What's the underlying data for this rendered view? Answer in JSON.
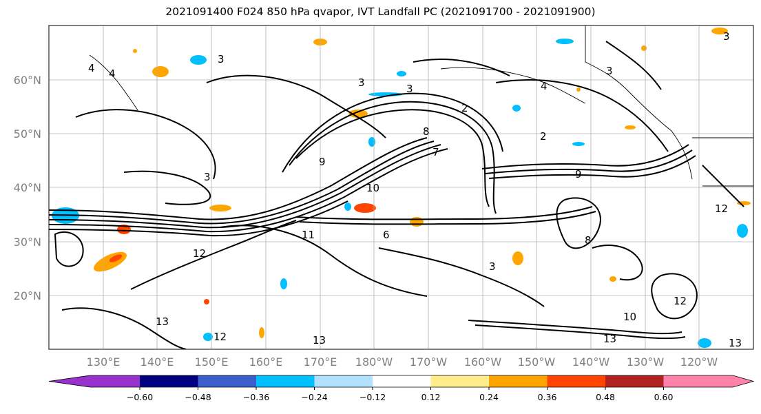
{
  "title": "2021091400 F024 850 hPa qvapor, IVT Landfall PC (2021091700 - 2021091900)",
  "map": {
    "lat_labels": [
      "60°N",
      "50°N",
      "40°N",
      "30°N",
      "20°N"
    ],
    "lon_labels": [
      "130°E",
      "140°E",
      "150°E",
      "160°E",
      "170°E",
      "180°W",
      "170°W",
      "160°W",
      "150°W",
      "140°W",
      "130°W",
      "120°W"
    ],
    "contour_labels": [
      "4",
      "4",
      "3",
      "3",
      "3",
      "2",
      "9",
      "3",
      "10",
      "8",
      "12",
      "11",
      "6",
      "8",
      "7",
      "9",
      "3",
      "12",
      "13",
      "13",
      "12",
      "4",
      "2",
      "3",
      "12",
      "10",
      "13",
      "13",
      "3"
    ]
  },
  "colorbar": {
    "tick_labels": [
      "−0.60",
      "−0.48",
      "−0.36",
      "−0.24",
      "−0.12",
      "0.12",
      "0.24",
      "0.36",
      "0.48",
      "0.60"
    ],
    "colors": [
      "#9932cc",
      "#000080",
      "#3a5fcd",
      "#00bfff",
      "#b0e2ff",
      "#ffffff",
      "#ffec8b",
      "#ffa500",
      "#ff4500",
      "#b22222",
      "#ff82ab"
    ]
  }
}
